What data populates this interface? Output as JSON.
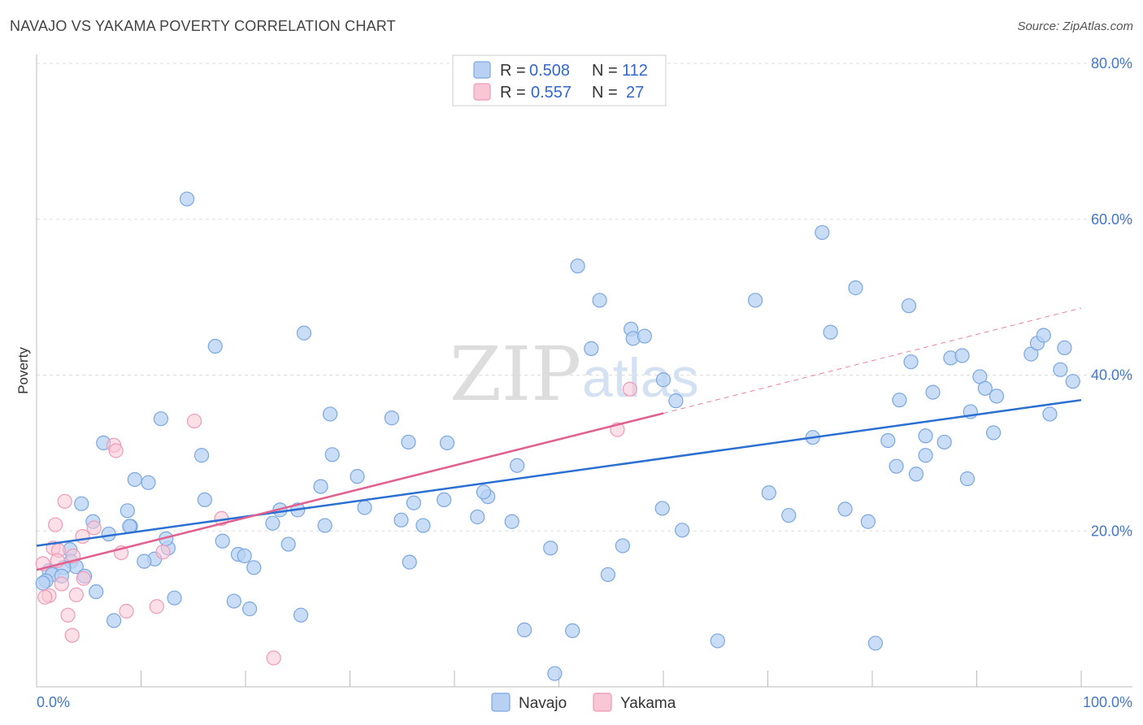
{
  "title": "NAVAJO VS YAKAMA POVERTY CORRELATION CHART",
  "source": "Source: ZipAtlas.com",
  "watermark": {
    "zip": "ZIP",
    "atlas": "atlas"
  },
  "legend": {
    "rows": [
      {
        "r_label": "R =",
        "r_value": "0.508",
        "n_label": "N =",
        "n_value": "112"
      },
      {
        "r_label": "R =",
        "r_value": "0.557",
        "n_label": "N =",
        "n_value": "27"
      }
    ]
  },
  "bottom_legend": {
    "navajo": "Navajo",
    "yakama": "Yakama"
  },
  "colors": {
    "navajo_fill": "#b8d1f3",
    "navajo_stroke": "#7aa7e0",
    "navajo_line": "#2a6fd1",
    "yakama_fill": "#f9c6d6",
    "yakama_stroke": "#ef9ab6",
    "yakama_line": "#e0608f",
    "tick_label": "#4477cc"
  },
  "chart_data": {
    "type": "scatter",
    "title": "NAVAJO VS YAKAMA POVERTY CORRELATION CHART",
    "xlabel": "",
    "ylabel": "Poverty",
    "xlim": [
      0,
      100
    ],
    "ylim": [
      0,
      80
    ],
    "y_ticks": [
      {
        "value": 20,
        "label": "20.0%"
      },
      {
        "value": 40,
        "label": "40.0%"
      },
      {
        "value": 60,
        "label": "60.0%"
      },
      {
        "value": 80,
        "label": "80.0%"
      }
    ],
    "x_ticks_labels": [
      {
        "value": 0,
        "label": "0.0%"
      },
      {
        "value": 100,
        "label": "100.0%"
      }
    ],
    "x_minor_ticks": [
      10,
      20,
      30,
      40,
      50,
      60,
      70,
      80,
      90,
      100
    ],
    "grid": true,
    "legend_position": "top-center",
    "series": [
      {
        "name": "Navajo",
        "points": [
          [
            14.4,
            62.6
          ],
          [
            6.4,
            31.3
          ],
          [
            9.4,
            26.6
          ],
          [
            10.7,
            26.2
          ],
          [
            11.9,
            34.4
          ],
          [
            15.8,
            29.7
          ],
          [
            16.1,
            24.0
          ],
          [
            17.1,
            43.7
          ],
          [
            25.6,
            45.4
          ],
          [
            28.3,
            29.8
          ],
          [
            28.1,
            35.0
          ],
          [
            34.0,
            34.5
          ],
          [
            35.6,
            31.4
          ],
          [
            39.3,
            31.3
          ],
          [
            31.4,
            23.0
          ],
          [
            27.2,
            25.7
          ],
          [
            30.7,
            27.0
          ],
          [
            23.3,
            22.7
          ],
          [
            25.0,
            22.7
          ],
          [
            22.6,
            21.0
          ],
          [
            27.6,
            20.7
          ],
          [
            34.9,
            21.4
          ],
          [
            37.0,
            20.7
          ],
          [
            36.1,
            23.6
          ],
          [
            39.0,
            24.0
          ],
          [
            35.7,
            16.0
          ],
          [
            24.1,
            18.3
          ],
          [
            17.8,
            18.7
          ],
          [
            19.3,
            17.0
          ],
          [
            19.9,
            16.8
          ],
          [
            20.8,
            15.3
          ],
          [
            18.9,
            11.0
          ],
          [
            20.4,
            10.0
          ],
          [
            25.3,
            9.2
          ],
          [
            13.2,
            11.4
          ],
          [
            12.6,
            17.8
          ],
          [
            12.4,
            19.0
          ],
          [
            11.3,
            16.4
          ],
          [
            10.3,
            16.1
          ],
          [
            9.0,
            20.6
          ],
          [
            8.7,
            22.6
          ],
          [
            6.9,
            19.6
          ],
          [
            5.4,
            21.2
          ],
          [
            4.3,
            23.5
          ],
          [
            3.2,
            17.6
          ],
          [
            3.3,
            16.1
          ],
          [
            3.8,
            15.4
          ],
          [
            2.6,
            15.3
          ],
          [
            1.2,
            14.9
          ],
          [
            1.5,
            14.4
          ],
          [
            0.9,
            13.6
          ],
          [
            0.6,
            13.3
          ],
          [
            2.4,
            14.2
          ],
          [
            4.6,
            14.2
          ],
          [
            5.7,
            12.2
          ],
          [
            7.4,
            8.5
          ],
          [
            8.9,
            20.6
          ],
          [
            46.0,
            28.4
          ],
          [
            46.7,
            7.3
          ],
          [
            51.8,
            54.0
          ],
          [
            53.9,
            49.6
          ],
          [
            56.9,
            45.9
          ],
          [
            57.1,
            44.7
          ],
          [
            58.2,
            45.0
          ],
          [
            60.0,
            39.4
          ],
          [
            61.2,
            36.7
          ],
          [
            59.9,
            22.9
          ],
          [
            61.8,
            20.1
          ],
          [
            56.1,
            18.1
          ],
          [
            54.7,
            14.4
          ],
          [
            51.3,
            7.2
          ],
          [
            49.6,
            1.7
          ],
          [
            53.1,
            43.4
          ],
          [
            49.2,
            17.8
          ],
          [
            45.5,
            21.2
          ],
          [
            43.2,
            24.4
          ],
          [
            42.2,
            21.8
          ],
          [
            42.8,
            25.0
          ],
          [
            65.2,
            5.9
          ],
          [
            68.8,
            49.6
          ],
          [
            70.1,
            24.9
          ],
          [
            72.0,
            22.0
          ],
          [
            74.3,
            32.0
          ],
          [
            75.2,
            58.3
          ],
          [
            76.0,
            45.5
          ],
          [
            77.4,
            22.8
          ],
          [
            78.4,
            51.2
          ],
          [
            79.6,
            21.2
          ],
          [
            80.3,
            5.6
          ],
          [
            81.5,
            31.6
          ],
          [
            82.3,
            28.3
          ],
          [
            82.6,
            36.8
          ],
          [
            83.5,
            48.9
          ],
          [
            83.7,
            41.7
          ],
          [
            84.2,
            27.3
          ],
          [
            85.1,
            32.2
          ],
          [
            85.1,
            29.7
          ],
          [
            85.8,
            37.8
          ],
          [
            86.9,
            31.4
          ],
          [
            87.5,
            42.2
          ],
          [
            88.6,
            42.5
          ],
          [
            89.1,
            26.7
          ],
          [
            89.4,
            35.3
          ],
          [
            90.3,
            39.8
          ],
          [
            90.8,
            38.3
          ],
          [
            91.6,
            32.6
          ],
          [
            91.9,
            37.3
          ],
          [
            95.2,
            42.7
          ],
          [
            95.8,
            44.1
          ],
          [
            96.4,
            45.1
          ],
          [
            97.0,
            35.0
          ],
          [
            98.0,
            40.7
          ],
          [
            98.4,
            43.5
          ],
          [
            99.2,
            39.2
          ]
        ]
      },
      {
        "name": "Yakama",
        "points": [
          [
            0.6,
            15.8
          ],
          [
            1.6,
            17.8
          ],
          [
            2.1,
            17.5
          ],
          [
            2.0,
            16.2
          ],
          [
            1.8,
            20.8
          ],
          [
            1.2,
            11.7
          ],
          [
            0.8,
            11.5
          ],
          [
            2.4,
            13.2
          ],
          [
            2.7,
            23.8
          ],
          [
            3.0,
            9.2
          ],
          [
            3.4,
            6.6
          ],
          [
            3.5,
            16.8
          ],
          [
            3.8,
            11.8
          ],
          [
            4.4,
            19.3
          ],
          [
            4.5,
            13.9
          ],
          [
            5.5,
            20.4
          ],
          [
            7.4,
            31.0
          ],
          [
            7.6,
            30.3
          ],
          [
            8.1,
            17.2
          ],
          [
            8.6,
            9.7
          ],
          [
            11.5,
            10.3
          ],
          [
            12.1,
            17.3
          ],
          [
            15.1,
            34.1
          ],
          [
            17.7,
            21.6
          ],
          [
            22.7,
            3.7
          ],
          [
            55.6,
            33.0
          ],
          [
            56.8,
            38.2
          ]
        ]
      }
    ],
    "trend_lines": [
      {
        "series": "Navajo",
        "x": [
          0,
          100
        ],
        "y": [
          18.1,
          36.8
        ],
        "style": "solid"
      },
      {
        "series": "Yakama",
        "x": [
          0,
          60
        ],
        "y": [
          15.0,
          35.1
        ],
        "style": "solid"
      },
      {
        "series": "Yakama",
        "x": [
          60,
          100
        ],
        "y": [
          35.1,
          48.6
        ],
        "style": "dashed"
      }
    ]
  }
}
